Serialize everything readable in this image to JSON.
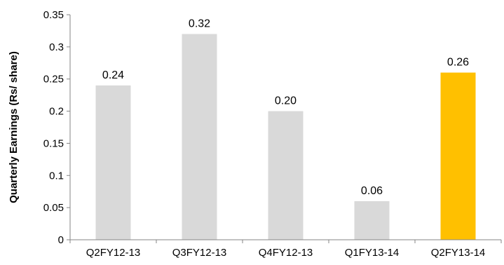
{
  "chart_data": {
    "type": "bar",
    "title": "",
    "xlabel": "",
    "ylabel": "Quarterly Earnings (Rs/ share)",
    "ylim": [
      0,
      0.35
    ],
    "yticks": [
      "0",
      "0.05",
      "0.1",
      "0.15",
      "0.2",
      "0.25",
      "0.3",
      "0.35"
    ],
    "categories": [
      "Q2FY12-13",
      "Q3FY12-13",
      "Q4FY12-13",
      "Q1FY13-14",
      "Q2FY13-14"
    ],
    "values": [
      0.24,
      0.32,
      0.2,
      0.06,
      0.26
    ],
    "data_labels": [
      "0.24",
      "0.32",
      "0.20",
      "0.06",
      "0.26"
    ],
    "bar_colors": [
      "#d9d9d9",
      "#d9d9d9",
      "#d9d9d9",
      "#d9d9d9",
      "#ffc000"
    ],
    "grid": false,
    "legend": "none"
  }
}
